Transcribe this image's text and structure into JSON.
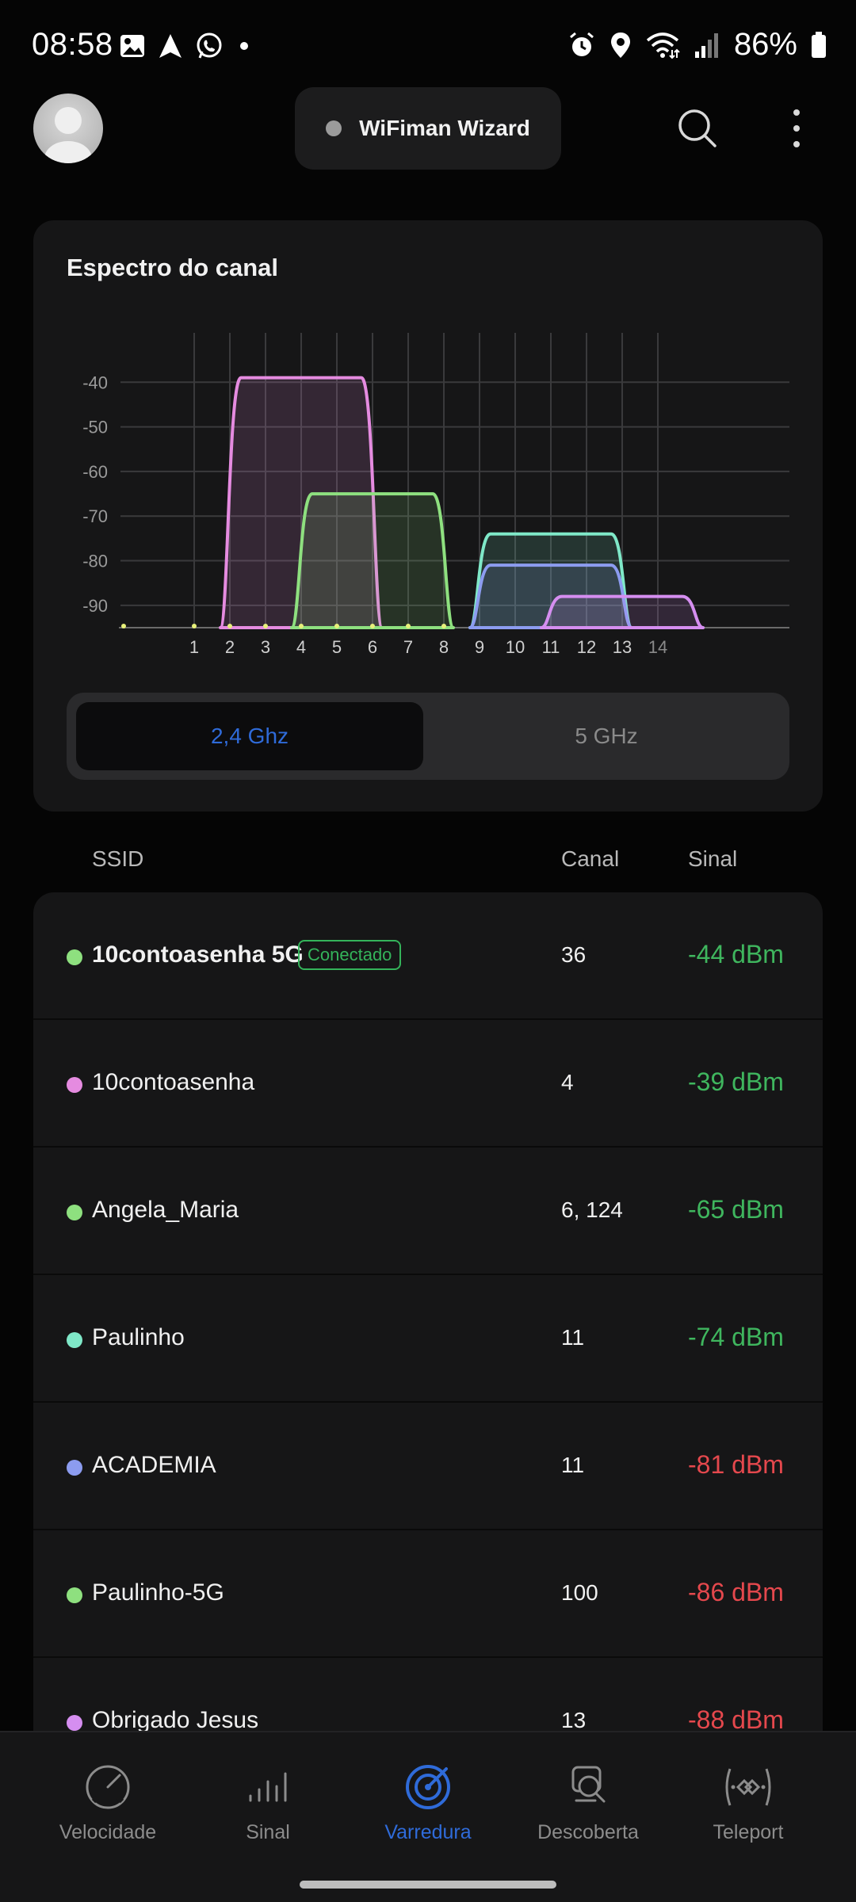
{
  "status_bar": {
    "time": "08:58",
    "battery": "86%",
    "left_icons": [
      "gallery-icon",
      "navigation-icon",
      "whatsapp-icon",
      "dot-icon"
    ],
    "right_icons": [
      "alarm-icon",
      "location-icon",
      "wifi-icon",
      "signal-icon",
      "battery-icon"
    ]
  },
  "header": {
    "wizard_label": "WiFiman Wizard"
  },
  "spectrum": {
    "title": "Espectro do canal",
    "band_options": [
      "2,4 Ghz",
      "5 GHz"
    ],
    "selected_band": "2,4 Ghz",
    "accent_color": "#2f6bd9"
  },
  "chart_data": {
    "type": "area",
    "title": "Espectro do canal",
    "xlabel": "",
    "ylabel": "",
    "x_ticks": [
      "1",
      "2",
      "3",
      "4",
      "5",
      "6",
      "7",
      "8",
      "9",
      "10",
      "11",
      "12",
      "13",
      "14"
    ],
    "y_ticks": [
      -40,
      -50,
      -60,
      -70,
      -80,
      -90
    ],
    "ylim": [
      -95,
      -30
    ],
    "grid": true,
    "series": [
      {
        "color": "#e58be0",
        "center_channel": 4,
        "width_channels": 4,
        "peak_dbm": -39
      },
      {
        "color": "#8ee07f",
        "center_channel": 6,
        "width_channels": 4,
        "peak_dbm": -65
      },
      {
        "color": "#7fe8c8",
        "center_channel": 11,
        "width_channels": 4,
        "peak_dbm": -74
      },
      {
        "color": "#8c9cf0",
        "center_channel": 11,
        "width_channels": 4,
        "peak_dbm": -81
      },
      {
        "color": "#d58ef0",
        "center_channel": 13,
        "width_channels": 4,
        "peak_dbm": -88
      }
    ]
  },
  "network_list": {
    "columns": [
      "SSID",
      "Canal",
      "Sinal"
    ],
    "connected_label": "Conectado",
    "rows": [
      {
        "ssid": "10contoasenha 5G",
        "channel": "36",
        "signal": "-44 dBm",
        "dot_color": "#8ee07f",
        "signal_color": "#3fb65e",
        "connected": true
      },
      {
        "ssid": "10contoasenha",
        "channel": "4",
        "signal": "-39 dBm",
        "dot_color": "#e58be0",
        "signal_color": "#3fb65e",
        "connected": false
      },
      {
        "ssid": "Angela_Maria",
        "channel": "6, 124",
        "signal": "-65 dBm",
        "dot_color": "#8ee07f",
        "signal_color": "#3fb65e",
        "connected": false
      },
      {
        "ssid": "Paulinho",
        "channel": "11",
        "signal": "-74 dBm",
        "dot_color": "#7fe8c8",
        "signal_color": "#3fb65e",
        "connected": false
      },
      {
        "ssid": "ACADEMIA",
        "channel": "11",
        "signal": "-81 dBm",
        "dot_color": "#8c9cf0",
        "signal_color": "#e5484d",
        "connected": false
      },
      {
        "ssid": "Paulinho-5G",
        "channel": "100",
        "signal": "-86 dBm",
        "dot_color": "#8ee07f",
        "signal_color": "#e5484d",
        "connected": false
      },
      {
        "ssid": "Obrigado Jesus",
        "channel": "13",
        "signal": "-88 dBm",
        "dot_color": "#d58ef0",
        "signal_color": "#e5484d",
        "connected": false
      }
    ]
  },
  "bottom_nav": {
    "items": [
      {
        "label": "Velocidade",
        "icon": "speedometer-icon"
      },
      {
        "label": "Sinal",
        "icon": "signal-bars-icon"
      },
      {
        "label": "Varredura",
        "icon": "radar-icon"
      },
      {
        "label": "Descoberta",
        "icon": "discovery-icon"
      },
      {
        "label": "Teleport",
        "icon": "teleport-icon"
      }
    ],
    "active": "Varredura"
  }
}
